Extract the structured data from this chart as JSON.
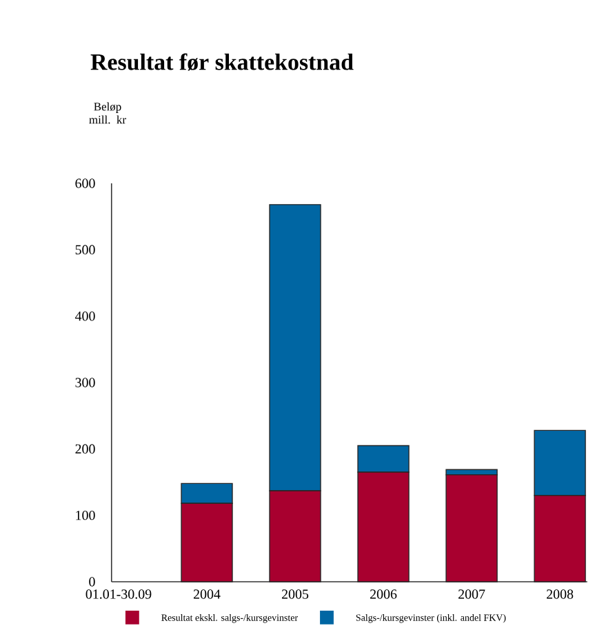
{
  "chart_data": {
    "type": "bar",
    "title": "Resultat før skattekostnad",
    "ylabel": "Beløp mill. kr",
    "categories": [
      "01.01-30.09",
      "2004",
      "2005",
      "2006",
      "2007",
      "2008"
    ],
    "stacked": true,
    "series": [
      {
        "name": "Resultat ekskl. salgs-/kursgevinster",
        "color": "#a8002f",
        "values": [
          null,
          118,
          137,
          165,
          161,
          130
        ]
      },
      {
        "name": "Salgs-/kursgevinster (inkl. andel FKV)",
        "color": "#0066a3",
        "values": [
          null,
          30,
          431,
          40,
          8,
          98
        ]
      }
    ],
    "ylim": [
      0,
      600
    ],
    "yticks": [
      0,
      100,
      200,
      300,
      400,
      500,
      600
    ],
    "grid": false,
    "legend": "bottom"
  }
}
